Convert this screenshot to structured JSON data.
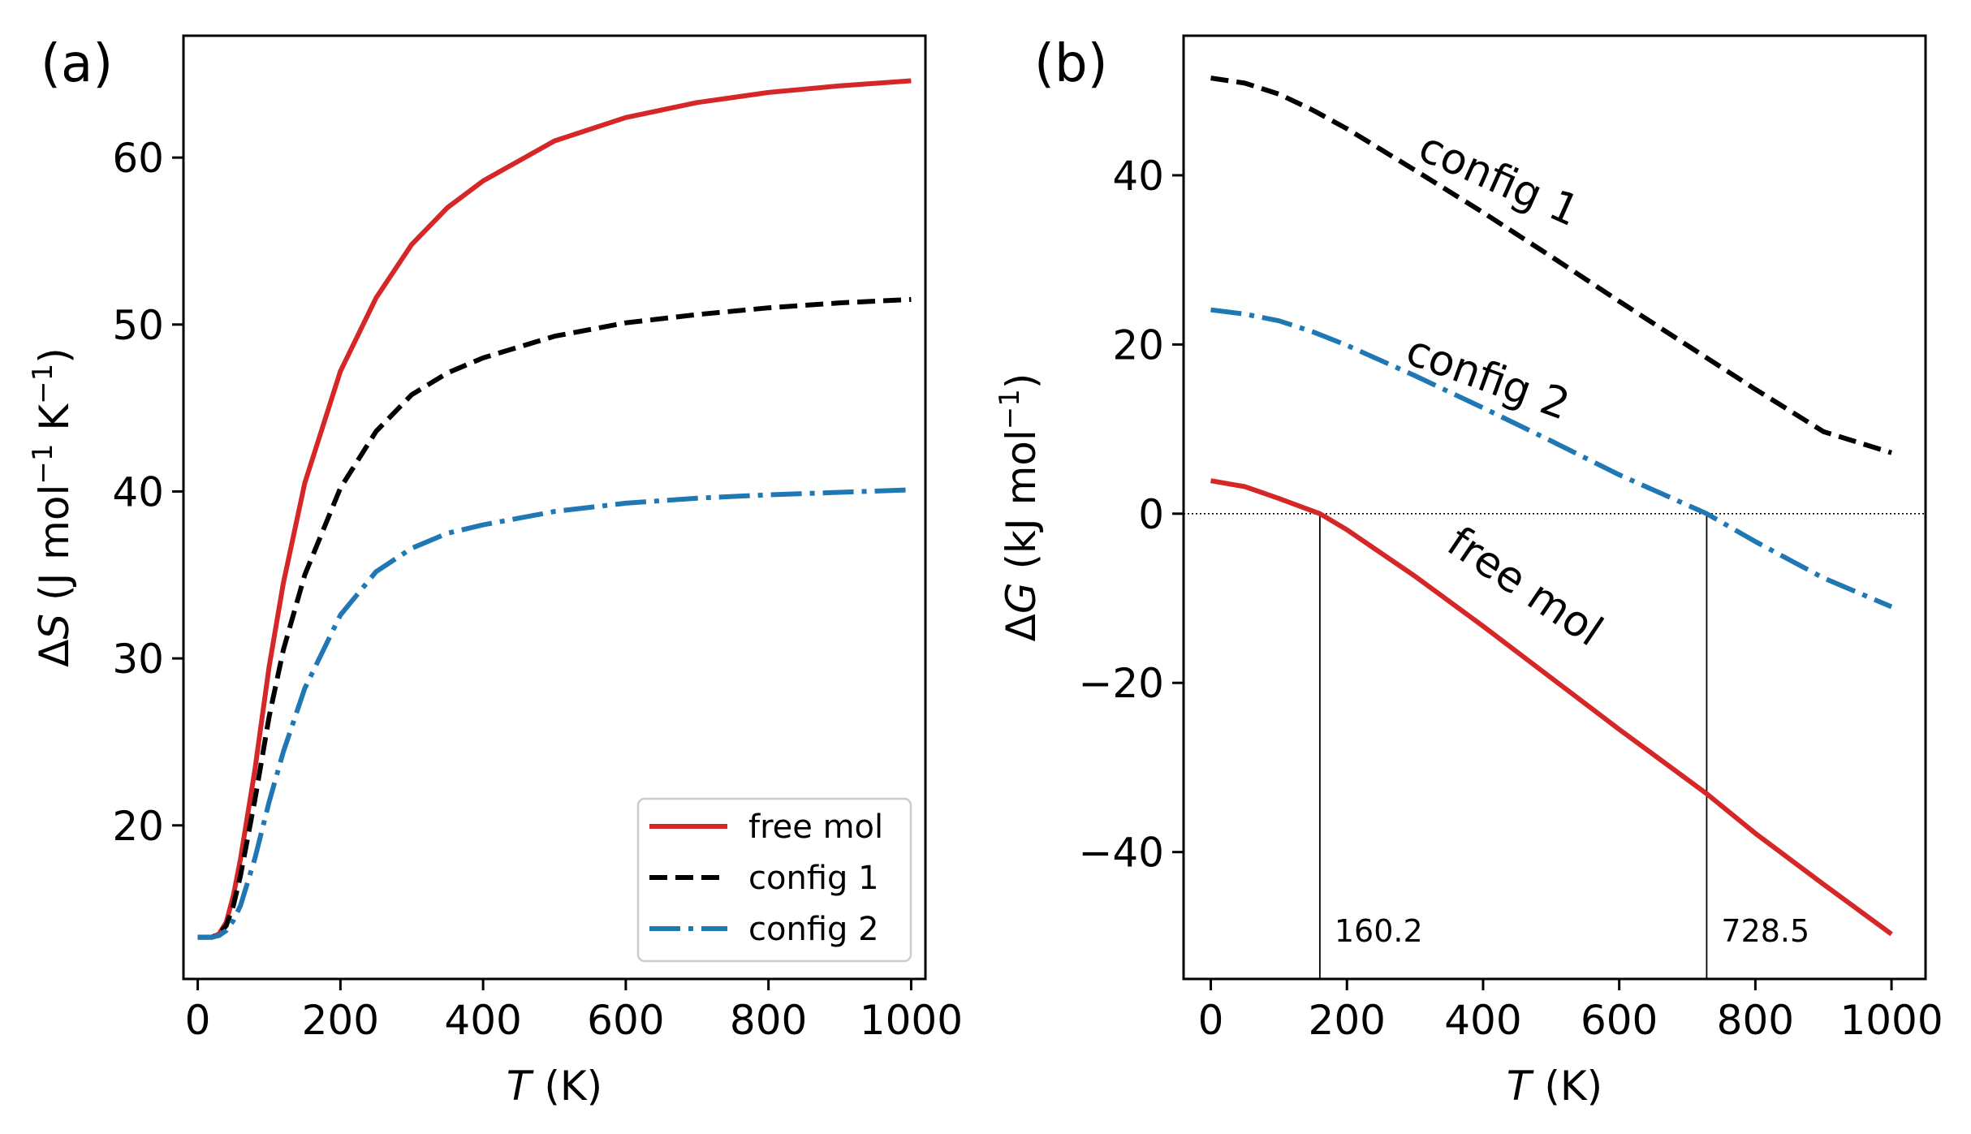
{
  "colors": {
    "free_mol": "#d62728",
    "config_1": "#000000",
    "config_2": "#1f77b4"
  },
  "chart_data": [
    {
      "type": "line",
      "panel_label": "(a)",
      "xlabel_var": "T",
      "xlabel_unit": " (K)",
      "ylabel_sym": "Δ",
      "ylabel_var": "S",
      "ylabel_unit_open": " (J mol",
      "ylabel_sup1": "−1",
      "ylabel_mid": " K",
      "ylabel_sup2": "−1",
      "ylabel_close": ")",
      "xlim": [
        -20,
        1020
      ],
      "ylim": [
        10.8,
        67.3
      ],
      "xticks": [
        0,
        200,
        400,
        600,
        800,
        1000
      ],
      "xtick_labels": [
        "0",
        "200",
        "400",
        "600",
        "800",
        "1000"
      ],
      "yticks": [
        20,
        30,
        40,
        50,
        60
      ],
      "ytick_labels": [
        "20",
        "30",
        "40",
        "50",
        "60"
      ],
      "legend": {
        "position": "lower-right",
        "entries": [
          "free mol",
          "config 1",
          "config 2"
        ]
      },
      "series": [
        {
          "name": "free mol",
          "style": "solid",
          "x": [
            0,
            20,
            30,
            40,
            50,
            60,
            80,
            100,
            120,
            150,
            200,
            250,
            300,
            350,
            400,
            500,
            600,
            700,
            800,
            900,
            1000
          ],
          "y": [
            13.3,
            13.3,
            13.5,
            14.2,
            15.8,
            18.0,
            23.3,
            29.5,
            34.5,
            40.5,
            47.2,
            51.6,
            54.8,
            57.0,
            58.6,
            61.0,
            62.4,
            63.3,
            63.9,
            64.3,
            64.6
          ]
        },
        {
          "name": "config 1",
          "style": "dashed",
          "x": [
            0,
            20,
            30,
            40,
            50,
            60,
            80,
            100,
            120,
            150,
            200,
            250,
            300,
            350,
            400,
            500,
            600,
            700,
            800,
            900,
            1000
          ],
          "y": [
            13.3,
            13.3,
            13.5,
            14.0,
            15.2,
            17.0,
            21.5,
            26.5,
            30.5,
            35.0,
            40.2,
            43.6,
            45.8,
            47.1,
            48.0,
            49.3,
            50.1,
            50.6,
            51.0,
            51.3,
            51.5
          ]
        },
        {
          "name": "config 2",
          "style": "dashdot",
          "x": [
            0,
            20,
            30,
            40,
            50,
            60,
            80,
            100,
            120,
            150,
            200,
            250,
            300,
            350,
            400,
            500,
            600,
            700,
            800,
            900,
            1000
          ],
          "y": [
            13.3,
            13.3,
            13.4,
            13.7,
            14.3,
            15.2,
            18.0,
            21.4,
            24.4,
            28.2,
            32.6,
            35.2,
            36.6,
            37.5,
            38.0,
            38.8,
            39.3,
            39.6,
            39.8,
            39.95,
            40.1
          ]
        }
      ]
    },
    {
      "type": "line",
      "panel_label": "(b)",
      "xlabel_var": "T",
      "xlabel_unit": " (K)",
      "ylabel_sym": "Δ",
      "ylabel_var": "G",
      "ylabel_unit_open": " (kJ mol",
      "ylabel_sup1": "−1",
      "ylabel_close": ")",
      "xlim": [
        -40,
        1050
      ],
      "ylim": [
        -55,
        56.5
      ],
      "xticks": [
        0,
        200,
        400,
        600,
        800,
        1000
      ],
      "xtick_labels": [
        "0",
        "200",
        "400",
        "600",
        "800",
        "1000"
      ],
      "yticks": [
        -40,
        -20,
        0,
        20,
        40
      ],
      "ytick_labels": [
        "−40",
        "−20",
        "0",
        "20",
        "40"
      ],
      "zero_line": 0,
      "crossings": [
        {
          "x": 160.2,
          "label": "160.2"
        },
        {
          "x": 728.5,
          "label": "728.5"
        }
      ],
      "curve_labels": [
        {
          "text": "config 1",
          "x": 415,
          "y": 38,
          "angle": 24
        },
        {
          "text": "config 2",
          "x": 400,
          "y": 14.5,
          "angle": 20
        },
        {
          "text": "free mol",
          "x": 450,
          "y": -10,
          "angle": 34
        }
      ],
      "series": [
        {
          "name": "free mol",
          "style": "solid",
          "x": [
            0,
            50,
            100,
            160.2,
            200,
            300,
            400,
            500,
            600,
            728.5,
            800,
            900,
            1000
          ],
          "y": [
            3.9,
            3.2,
            1.8,
            0,
            -1.9,
            -7.4,
            -13.3,
            -19.4,
            -25.5,
            -33.1,
            -37.8,
            -43.8,
            -49.7
          ]
        },
        {
          "name": "config 1",
          "style": "dashed",
          "x": [
            0,
            50,
            100,
            150,
            200,
            300,
            400,
            500,
            600,
            700,
            800,
            900,
            1000
          ],
          "y": [
            51.5,
            50.9,
            49.6,
            47.7,
            45.5,
            40.6,
            35.6,
            30.4,
            25.1,
            19.9,
            14.7,
            9.7,
            7.2
          ]
        },
        {
          "name": "config 2",
          "style": "dashdot",
          "x": [
            0,
            50,
            100,
            150,
            200,
            300,
            400,
            500,
            600,
            728.5,
            800,
            900,
            1000
          ],
          "y": [
            24.1,
            23.6,
            22.8,
            21.5,
            19.9,
            16.3,
            12.5,
            8.6,
            4.6,
            0,
            -3.3,
            -7.6,
            -11.0
          ]
        }
      ]
    }
  ]
}
